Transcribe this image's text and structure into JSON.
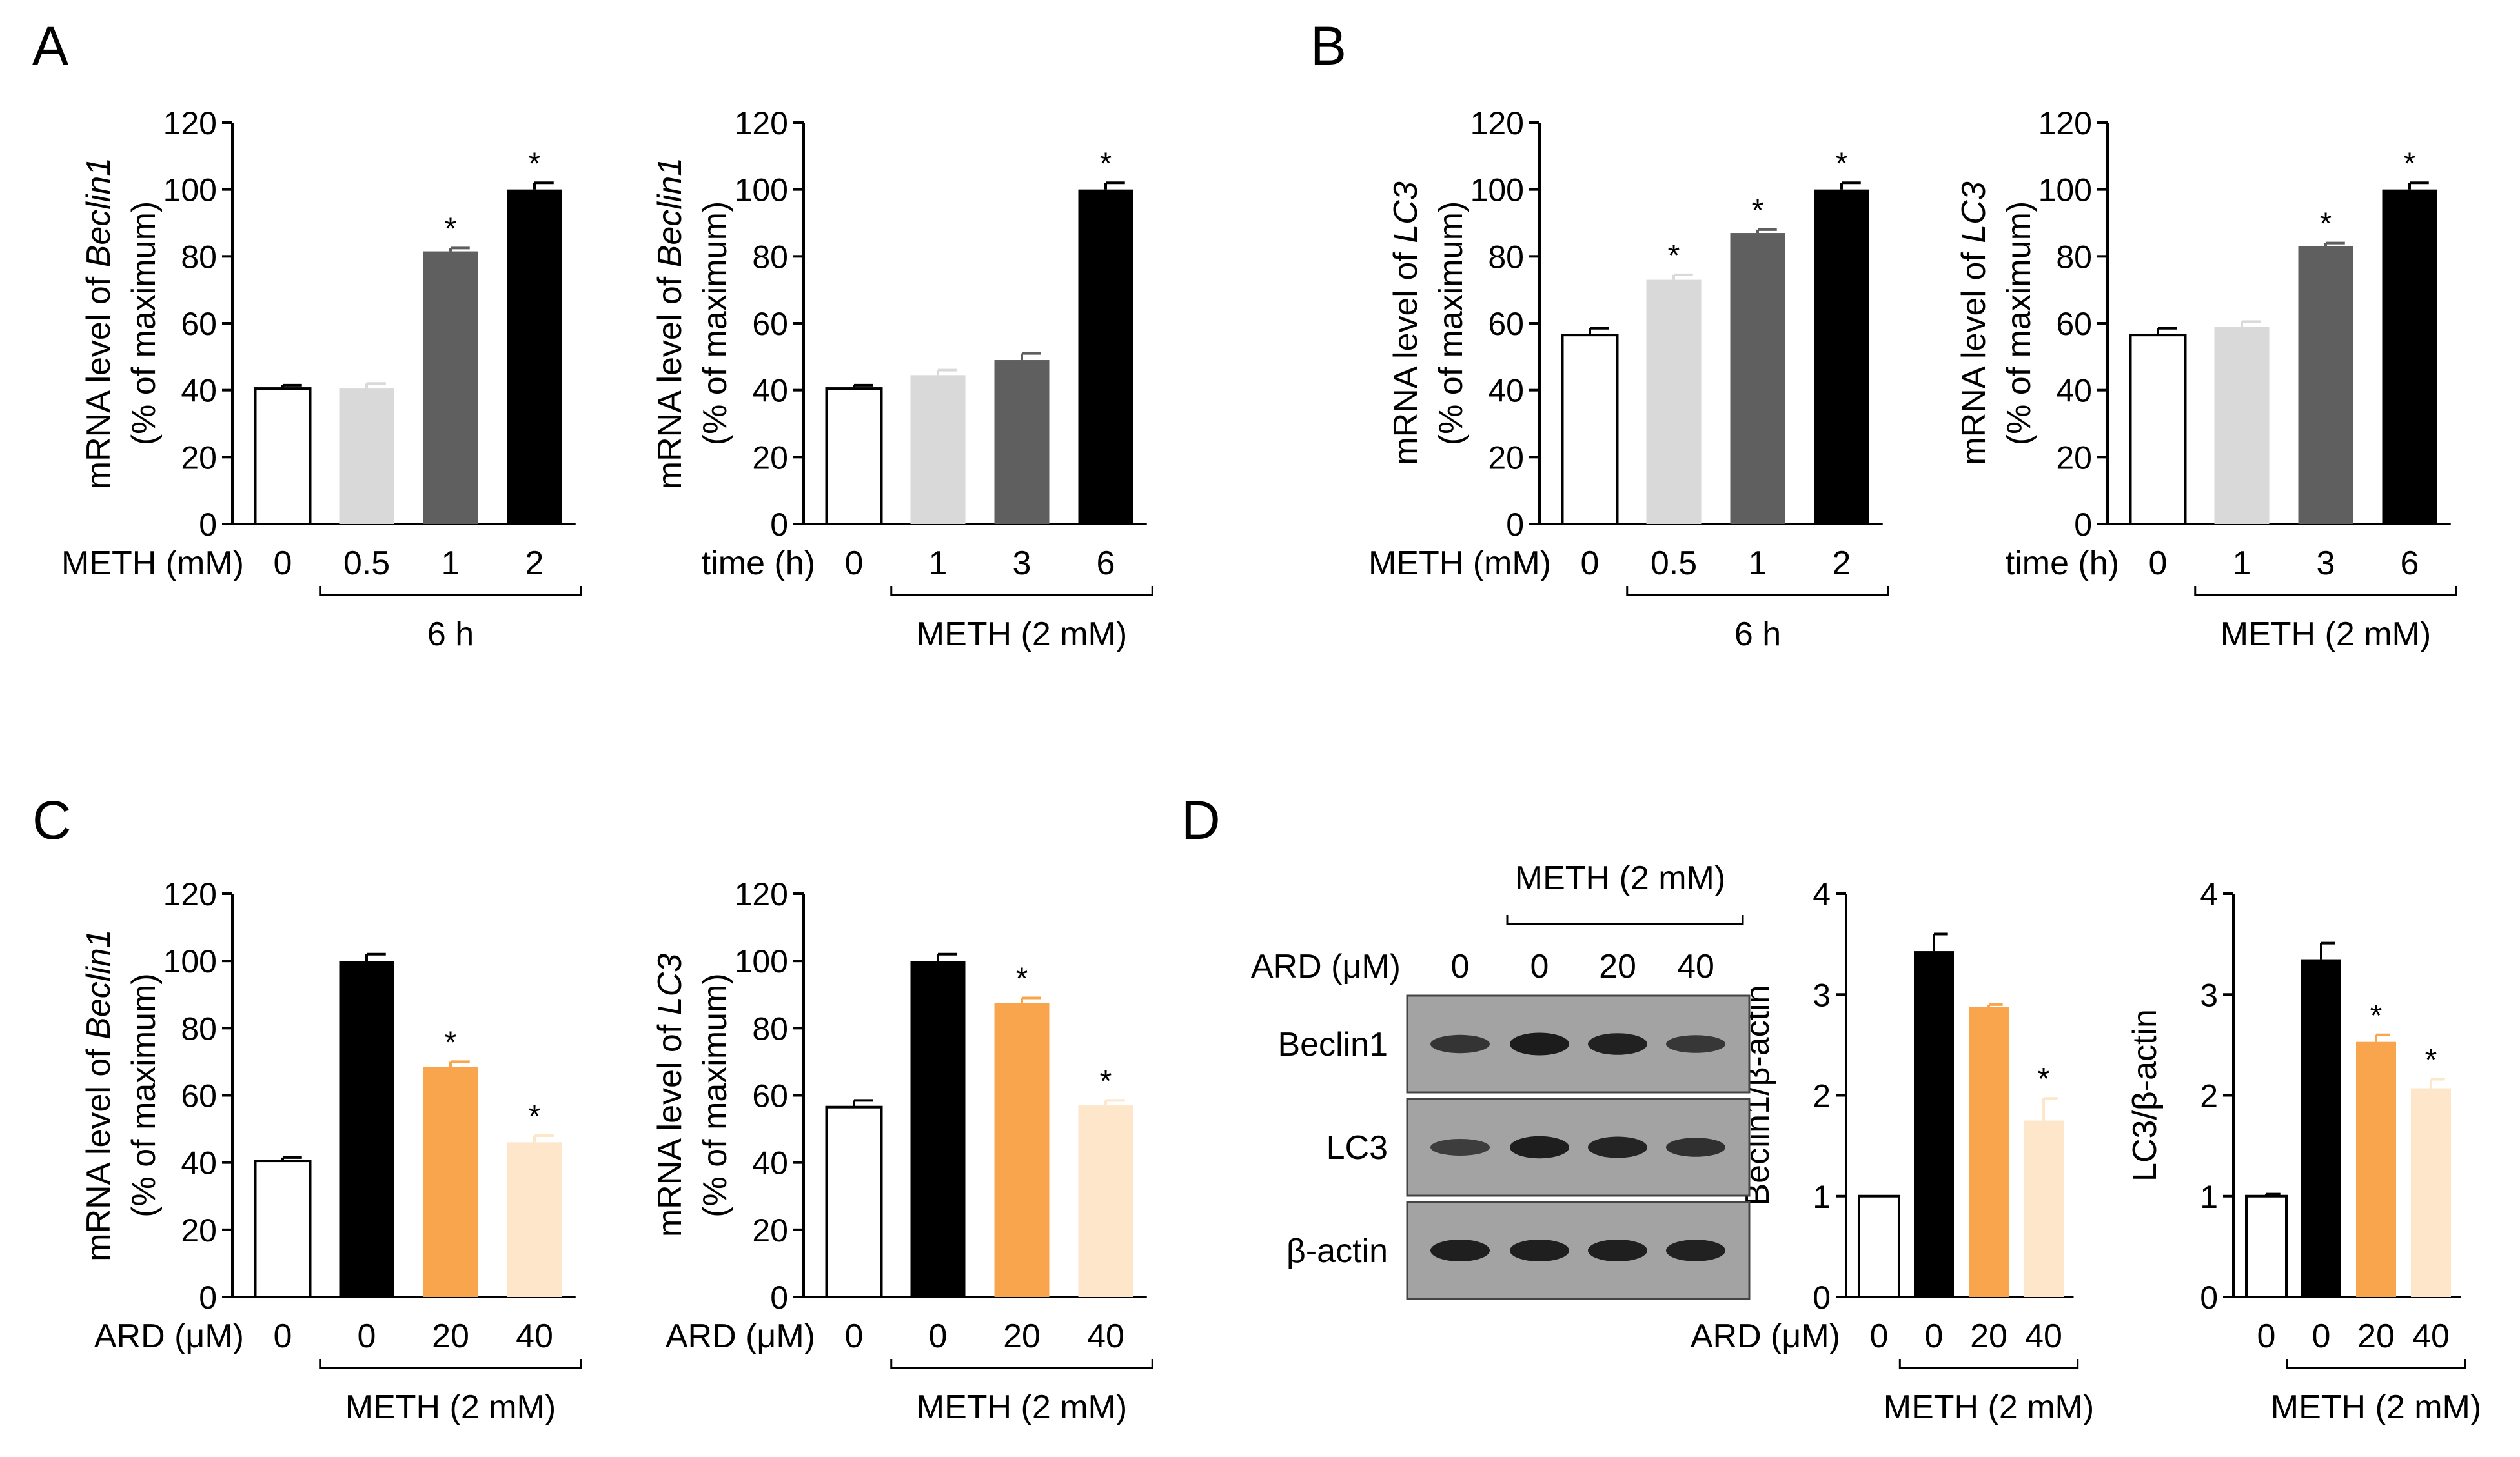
{
  "colors": {
    "white": "#ffffff",
    "light_gray": "#d9d9d9",
    "dark_gray": "#5f5f5f",
    "black": "#000000",
    "orange": "#f9a54d",
    "light_orange": "#fde6c9"
  },
  "panel_labels": [
    "A",
    "B",
    "C",
    "D"
  ],
  "chart_data": [
    {
      "type": "bar",
      "panel": "A",
      "ylabel": [
        "mRNA level of ",
        "Beclin1",
        "(% of maximum)"
      ],
      "ylim": [
        0,
        120
      ],
      "yticks": [
        "0",
        "20",
        "40",
        "60",
        "80",
        "100",
        "120"
      ],
      "axis_label": "METH (mM)",
      "categories": [
        "0",
        "0.5",
        "1",
        "2"
      ],
      "values": [
        40.5,
        40.5,
        81.5,
        100
      ],
      "errors": [
        1,
        1.5,
        1,
        2
      ],
      "significance": [
        "",
        "",
        "*",
        "*"
      ],
      "colors": [
        "#ffffff",
        "#d9d9d9",
        "#5f5f5f",
        "#000000"
      ],
      "group_label": "6 h"
    },
    {
      "type": "bar",
      "panel": "A",
      "ylabel": [
        "mRNA level of ",
        "Beclin1",
        "(% of maximum)"
      ],
      "ylim": [
        0,
        120
      ],
      "yticks": [
        "0",
        "20",
        "40",
        "60",
        "80",
        "100",
        "120"
      ],
      "axis_label": "time (h)",
      "categories": [
        "0",
        "1",
        "3",
        "6"
      ],
      "values": [
        40.5,
        44.5,
        49,
        100
      ],
      "errors": [
        1,
        1.5,
        2,
        2
      ],
      "significance": [
        "",
        "",
        "",
        "*"
      ],
      "colors": [
        "#ffffff",
        "#d9d9d9",
        "#5f5f5f",
        "#000000"
      ],
      "group_label": "METH (2 mM)"
    },
    {
      "type": "bar",
      "panel": "B",
      "ylabel": [
        "mRNA level of ",
        "LC3",
        "(% of maximum)"
      ],
      "ylim": [
        0,
        120
      ],
      "yticks": [
        "0",
        "20",
        "40",
        "60",
        "80",
        "100",
        "120"
      ],
      "axis_label": "METH (mM)",
      "categories": [
        "0",
        "0.5",
        "1",
        "2"
      ],
      "values": [
        56.5,
        73,
        87,
        100
      ],
      "errors": [
        2,
        1.5,
        1,
        2
      ],
      "significance": [
        "",
        "*",
        "*",
        "*"
      ],
      "colors": [
        "#ffffff",
        "#d9d9d9",
        "#5f5f5f",
        "#000000"
      ],
      "group_label": "6 h"
    },
    {
      "type": "bar",
      "panel": "B",
      "ylabel": [
        "mRNA level of ",
        "LC3",
        "(% of maximum)"
      ],
      "ylim": [
        0,
        120
      ],
      "yticks": [
        "0",
        "20",
        "40",
        "60",
        "80",
        "100",
        "120"
      ],
      "axis_label": "time (h)",
      "categories": [
        "0",
        "1",
        "3",
        "6"
      ],
      "values": [
        56.5,
        59,
        83,
        100
      ],
      "errors": [
        2,
        1.5,
        1,
        2
      ],
      "significance": [
        "",
        "",
        "*",
        "*"
      ],
      "colors": [
        "#ffffff",
        "#d9d9d9",
        "#5f5f5f",
        "#000000"
      ],
      "group_label": "METH (2 mM)"
    },
    {
      "type": "bar",
      "panel": "C",
      "ylabel": [
        "mRNA level of ",
        "Beclin1",
        "(% of maximum)"
      ],
      "ylim": [
        0,
        120
      ],
      "yticks": [
        "0",
        "20",
        "40",
        "60",
        "80",
        "100",
        "120"
      ],
      "axis_label": "ARD (μM)",
      "categories": [
        "0",
        "0",
        "20",
        "40"
      ],
      "values": [
        40.5,
        100,
        68.5,
        46
      ],
      "errors": [
        1,
        2,
        1.5,
        2
      ],
      "significance": [
        "",
        "",
        "*",
        "*"
      ],
      "colors": [
        "#ffffff",
        "#000000",
        "#f9a54d",
        "#fde6c9"
      ],
      "group_label": "METH (2 mM)"
    },
    {
      "type": "bar",
      "panel": "C",
      "ylabel": [
        "mRNA level of ",
        "LC3",
        "(% of maximum)"
      ],
      "ylim": [
        0,
        120
      ],
      "yticks": [
        "0",
        "20",
        "40",
        "60",
        "80",
        "100",
        "120"
      ],
      "axis_label": "ARD (μM)",
      "categories": [
        "0",
        "0",
        "20",
        "40"
      ],
      "values": [
        56.5,
        100,
        87.5,
        57
      ],
      "errors": [
        2,
        2,
        1.5,
        1.5
      ],
      "significance": [
        "",
        "",
        "*",
        "*"
      ],
      "colors": [
        "#ffffff",
        "#000000",
        "#f9a54d",
        "#fde6c9"
      ],
      "group_label": "METH (2 mM)"
    },
    {
      "type": "bar",
      "panel": "D",
      "ylabel": [
        "Beclin1/β-actin"
      ],
      "ylim": [
        0,
        4
      ],
      "yticks": [
        "0",
        "1",
        "2",
        "3",
        "4"
      ],
      "axis_label": "ARD (μM)",
      "categories": [
        "0",
        "0",
        "20",
        "40"
      ],
      "values": [
        1.0,
        3.43,
        2.88,
        1.75
      ],
      "errors": [
        0,
        0.17,
        0.02,
        0.22
      ],
      "significance": [
        "",
        "",
        "",
        "*"
      ],
      "colors": [
        "#ffffff",
        "#000000",
        "#f9a54d",
        "#fde6c9"
      ],
      "group_label": "METH (2 mM)"
    },
    {
      "type": "bar",
      "panel": "D",
      "ylabel": [
        "LC3/β-actin"
      ],
      "ylim": [
        0,
        4
      ],
      "yticks": [
        "0",
        "1",
        "2",
        "3",
        "4"
      ],
      "axis_label": "",
      "categories": [
        "0",
        "0",
        "20",
        "40"
      ],
      "values": [
        1.0,
        3.35,
        2.53,
        2.07
      ],
      "errors": [
        0.02,
        0.16,
        0.07,
        0.09
      ],
      "significance": [
        "",
        "",
        "*",
        "*"
      ],
      "colors": [
        "#ffffff",
        "#000000",
        "#f9a54d",
        "#fde6c9"
      ],
      "group_label": "METH (2 mM)"
    }
  ],
  "blot": {
    "treatment_label": "METH (2 mM)",
    "axis_label": "ARD (μM)",
    "lanes": [
      "0",
      "0",
      "20",
      "40"
    ],
    "rows": [
      {
        "label": "Beclin1",
        "intensities": [
          0.62,
          0.95,
          0.88,
          0.58
        ]
      },
      {
        "label": "LC3",
        "intensities": [
          0.5,
          0.92,
          0.85,
          0.68
        ]
      },
      {
        "label": "β-actin",
        "intensities": [
          0.9,
          0.9,
          0.9,
          0.88
        ]
      }
    ]
  }
}
